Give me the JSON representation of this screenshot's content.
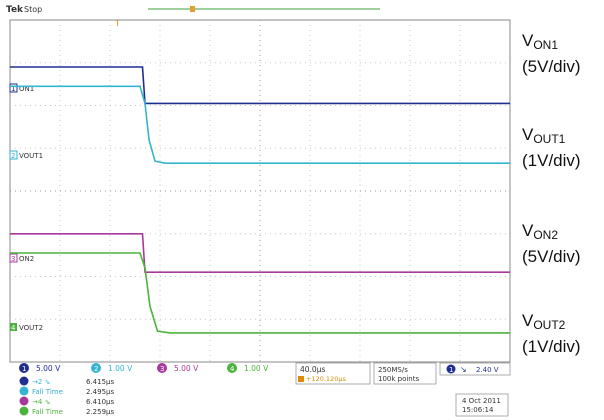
{
  "header": {
    "brand": "Tek",
    "status": "Stop",
    "trigger_marker": "T"
  },
  "channels": [
    {
      "id": "ch1",
      "label": "ON1",
      "color": "#1f2f8f"
    },
    {
      "id": "ch2",
      "label": "VOUT1",
      "color": "#34b4d0"
    },
    {
      "id": "ch3",
      "label": "ON2",
      "color": "#a8389c"
    },
    {
      "id": "ch4",
      "label": "VOUT2",
      "color": "#4cb43c"
    }
  ],
  "side_labels": [
    {
      "name": "ON1",
      "scale": "(5V/div)"
    },
    {
      "name": "OUT1",
      "scale": "(1V/div)"
    },
    {
      "name": "ON2",
      "scale": "(5V/div)"
    },
    {
      "name": "OUT2",
      "scale": "(1V/div)"
    }
  ],
  "readout": {
    "ch_scales": [
      {
        "num": "1",
        "value": "5.00 V"
      },
      {
        "num": "2",
        "value": "1.00 V"
      },
      {
        "num": "3",
        "value": "5.00 V"
      },
      {
        "num": "4",
        "value": "1.00 V"
      }
    ],
    "measurements": [
      {
        "label": "→2 ⇘",
        "value": "6.415µs"
      },
      {
        "label": "Fall Time",
        "value": "2.495µs"
      },
      {
        "label": "→4 ⇘",
        "value": "6.410µs"
      },
      {
        "label": "Fall Time",
        "value": "2.259µs"
      }
    ],
    "timebase": "40.0µs",
    "trigger_pos": "+120.120µs",
    "sample_rate": "250MS/s",
    "record_length": "100k points",
    "trigger_level": "2.40 V",
    "date": "4 Oct 2011",
    "time": "15:06:14"
  },
  "chart_data": {
    "type": "line",
    "x_divisions": 10,
    "y_divisions": 8,
    "series": [
      {
        "name": "ON1",
        "points": [
          [
            0,
            6.9
          ],
          [
            2.65,
            6.9
          ],
          [
            2.7,
            6.05
          ],
          [
            10,
            6.05
          ]
        ]
      },
      {
        "name": "VOUT1",
        "points": [
          [
            0,
            6.45
          ],
          [
            2.6,
            6.45
          ],
          [
            2.7,
            6.05
          ],
          [
            2.78,
            5.2
          ],
          [
            2.9,
            4.7
          ],
          [
            3.1,
            4.65
          ],
          [
            10,
            4.65
          ]
        ]
      },
      {
        "name": "ON2",
        "points": [
          [
            0,
            3.0
          ],
          [
            2.65,
            3.0
          ],
          [
            2.7,
            2.1
          ],
          [
            10,
            2.1
          ]
        ]
      },
      {
        "name": "VOUT2",
        "points": [
          [
            0,
            2.55
          ],
          [
            2.6,
            2.55
          ],
          [
            2.7,
            2.2
          ],
          [
            2.8,
            1.3
          ],
          [
            2.95,
            0.72
          ],
          [
            3.2,
            0.68
          ],
          [
            10,
            0.68
          ]
        ]
      }
    ]
  }
}
